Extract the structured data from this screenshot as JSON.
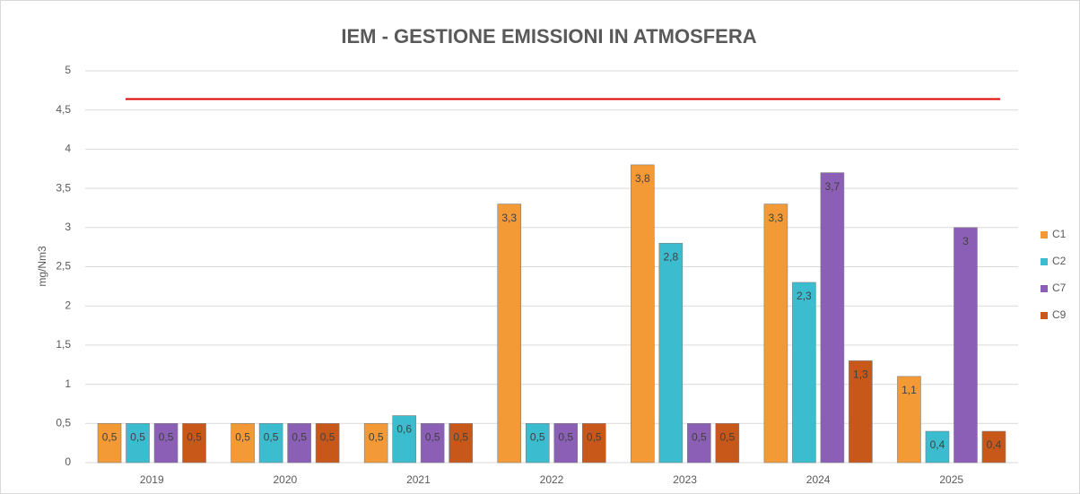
{
  "chart_data": {
    "type": "bar",
    "title": "IEM - GESTIONE EMISSIONI IN ATMOSFERA",
    "y_label": "mg/Nm3",
    "categories": [
      "2019",
      "2020",
      "2021",
      "2022",
      "2023",
      "2024",
      "2025"
    ],
    "series": [
      {
        "name": "C1",
        "color": "#f39a36",
        "values": [
          0.5,
          0.5,
          0.5,
          3.3,
          3.8,
          3.3,
          1.1
        ],
        "value_labels": [
          "0,5",
          "0,5",
          "0,5",
          "3,3",
          "3,8",
          "3,3",
          "1,1"
        ]
      },
      {
        "name": "C2",
        "color": "#3cbccf",
        "values": [
          0.5,
          0.5,
          0.6,
          0.5,
          2.8,
          2.3,
          0.4
        ],
        "value_labels": [
          "0,5",
          "0,5",
          "0,6",
          "0,5",
          "2,8",
          "2,3",
          "0,4"
        ]
      },
      {
        "name": "C7",
        "color": "#8b5fb6",
        "values": [
          0.5,
          0.5,
          0.5,
          0.5,
          0.5,
          3.7,
          3
        ],
        "value_labels": [
          "0,5",
          "0,5",
          "0,5",
          "0,5",
          "0,5",
          "3,7",
          "3"
        ]
      },
      {
        "name": "C9",
        "color": "#c8581a",
        "values": [
          0.5,
          0.5,
          0.5,
          0.5,
          0.5,
          1.3,
          0.4
        ],
        "value_labels": [
          "0,5",
          "0,5",
          "0,5",
          "0,5",
          "0,5",
          "1,3",
          "0,4"
        ]
      }
    ],
    "reference_line": {
      "value": 4.64,
      "color": "#e00000"
    },
    "ylim": [
      0,
      5
    ],
    "yticks": [
      0,
      {
        "value": 0.5,
        "label": "0,5"
      },
      1,
      {
        "value": 1.5,
        "label": "1,5"
      },
      2,
      {
        "value": 2.5,
        "label": "2,5"
      },
      3,
      {
        "value": 3.5,
        "label": "3,5"
      },
      4,
      {
        "value": 4.5,
        "label": "4,5"
      },
      5
    ],
    "grid": true,
    "legend": "right"
  }
}
